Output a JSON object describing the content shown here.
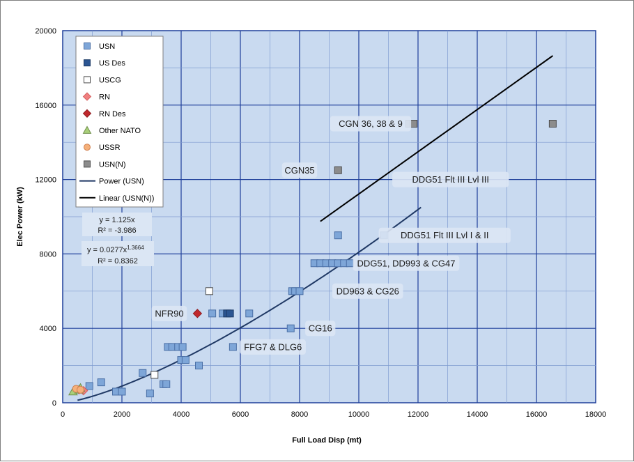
{
  "chart_data": {
    "type": "scatter",
    "title": "",
    "xlabel": "Full Load Disp (mt)",
    "ylabel": "Elec Power (kW)",
    "xlim": [
      0,
      18000
    ],
    "ylim": [
      0,
      20000
    ],
    "x_ticks": [
      "0",
      "2000",
      "4000",
      "6000",
      "8000",
      "10000",
      "12000",
      "14000",
      "16000",
      "18000"
    ],
    "y_ticks": [
      "0",
      "4000",
      "8000",
      "12000",
      "16000",
      "20000"
    ],
    "grid": true,
    "legend_position": "top-left",
    "colors": {
      "plot_bg": "#c9daf0",
      "grid_major": "#1f3f9a",
      "grid_minor": "#7f9bd0",
      "usn": "#7ea6d8",
      "us_des": "#2b5592",
      "uscg": "#ffffff",
      "rn": "#f08080",
      "rn_des": "#c0282d",
      "other_nato": "#a9cf7a",
      "ussr": "#f5b07a",
      "usn_n": "#8c8c8c",
      "power_line": "#1f3864",
      "linear_line": "#000000"
    },
    "series": [
      {
        "name": "USN",
        "marker": "square",
        "points": [
          [
            900,
            900
          ],
          [
            1300,
            1100
          ],
          [
            1800,
            600
          ],
          [
            2000,
            600
          ],
          [
            2700,
            1600
          ],
          [
            2950,
            500
          ],
          [
            3400,
            1000
          ],
          [
            3500,
            1000
          ],
          [
            3550,
            3000
          ],
          [
            3700,
            3000
          ],
          [
            3900,
            3000
          ],
          [
            4050,
            3000
          ],
          [
            4000,
            2300
          ],
          [
            4150,
            2300
          ],
          [
            4600,
            2000
          ],
          [
            5050,
            4800
          ],
          [
            5400,
            4800
          ],
          [
            5750,
            3000
          ],
          [
            6300,
            4800
          ],
          [
            7700,
            4000
          ],
          [
            7750,
            6000
          ],
          [
            7850,
            6000
          ],
          [
            8000,
            6000
          ],
          [
            8500,
            7500
          ],
          [
            8700,
            7500
          ],
          [
            8900,
            7500
          ],
          [
            9100,
            7500
          ],
          [
            9300,
            7500
          ],
          [
            9500,
            7500
          ],
          [
            9700,
            7500
          ],
          [
            9300,
            9000
          ],
          [
            10850,
            9000
          ],
          [
            12050,
            12000
          ]
        ]
      },
      {
        "name": "US Des",
        "marker": "square",
        "points": [
          [
            5550,
            4800
          ],
          [
            5650,
            4800
          ]
        ]
      },
      {
        "name": "USCG",
        "marker": "square",
        "points": [
          [
            4950,
            6000
          ],
          [
            3100,
            1500
          ]
        ]
      },
      {
        "name": "RN",
        "marker": "diamond",
        "points": [
          [
            550,
            700
          ],
          [
            700,
            650
          ]
        ]
      },
      {
        "name": "RN Des",
        "marker": "diamond",
        "points": [
          [
            4550,
            4800
          ]
        ]
      },
      {
        "name": "Other NATO",
        "marker": "triangle",
        "points": [
          [
            350,
            600
          ],
          [
            550,
            700
          ],
          [
            600,
            800
          ]
        ]
      },
      {
        "name": "USSR",
        "marker": "circle",
        "points": [
          [
            450,
            750
          ],
          [
            600,
            700
          ]
        ]
      },
      {
        "name": "USN(N)",
        "marker": "square",
        "points": [
          [
            9300,
            12500
          ],
          [
            11700,
            15000
          ],
          [
            11850,
            15000
          ],
          [
            16550,
            15000
          ]
        ]
      }
    ],
    "fits": [
      {
        "name": "Power (USN)",
        "kind": "power",
        "a": 0.0277,
        "b": 1.3664,
        "x_range": [
          500,
          12100
        ]
      },
      {
        "name": "Linear (USN(N))",
        "kind": "points",
        "points": [
          [
            8700,
            9750
          ],
          [
            16550,
            18650
          ]
        ]
      }
    ],
    "annotations": [
      {
        "text": "CGN 36, 38 & 9",
        "x": 10400,
        "y": 15000
      },
      {
        "text": "CGN35",
        "x": 8000,
        "y": 12500
      },
      {
        "text": "DDG51 Flt III Lvl III",
        "x": 13100,
        "y": 12000
      },
      {
        "text": "DDG51 Flt III Lvl I & II",
        "x": 12900,
        "y": 9000
      },
      {
        "text": "DDG51, DD993 & CG47",
        "x": 11600,
        "y": 7500
      },
      {
        "text": "DD963 & CG26",
        "x": 10300,
        "y": 6000
      },
      {
        "text": "NFR90",
        "x": 3600,
        "y": 4800
      },
      {
        "text": "CG16",
        "x": 8700,
        "y": 4000
      },
      {
        "text": "FFG7 & DLG6",
        "x": 7100,
        "y": 3000
      }
    ],
    "equations": [
      {
        "line1": "y = 1.125x",
        "line2": "R² = -3.986"
      },
      {
        "pre": "y = 0.0277x",
        "sup": "1.3664",
        "line2": "R² = 0.8362"
      }
    ]
  }
}
